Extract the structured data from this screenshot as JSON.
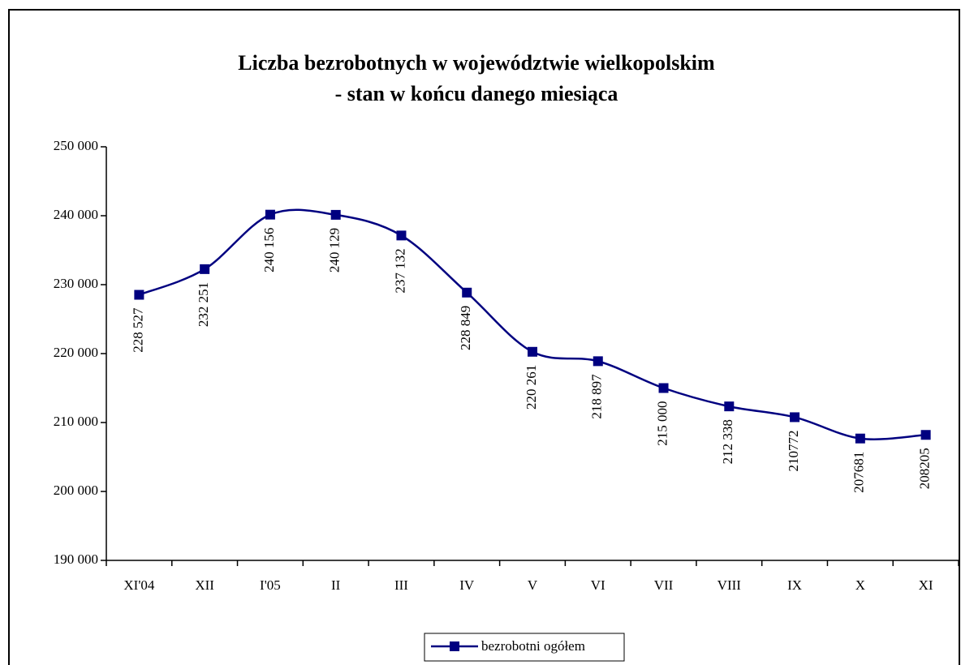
{
  "chart_data": {
    "type": "line",
    "title": "Liczba bezrobotnych w województwie wielkopolskim",
    "subtitle": "- stan w końcu danego miesiąca",
    "categories": [
      "XI'04",
      "XII",
      "I'05",
      "II",
      "III",
      "IV",
      "V",
      "VI",
      "VII",
      "VIII",
      "IX",
      "X",
      "XI"
    ],
    "series": [
      {
        "name": "bezrobotni ogółem",
        "color": "#000080",
        "values": [
          228527,
          232251,
          240156,
          240129,
          237132,
          228849,
          220261,
          218897,
          215000,
          212338,
          210772,
          207681,
          208205
        ],
        "value_labels": [
          "228 527",
          "232 251",
          "240 156",
          "240 129",
          "237 132",
          "228 849",
          "220 261",
          "218 897",
          "215 000",
          "212 338",
          "210772",
          "207681",
          "208205"
        ]
      }
    ],
    "ylim": [
      190000,
      250000
    ],
    "yticks": [
      {
        "value": 190000,
        "label": "190 000"
      },
      {
        "value": 200000,
        "label": "200 000"
      },
      {
        "value": 210000,
        "label": "210 000"
      },
      {
        "value": 220000,
        "label": "220 000"
      },
      {
        "value": 230000,
        "label": "230 000"
      },
      {
        "value": 240000,
        "label": "240 000"
      },
      {
        "value": 250000,
        "label": "250 000"
      }
    ],
    "smooth": true,
    "legend": "bottom"
  }
}
